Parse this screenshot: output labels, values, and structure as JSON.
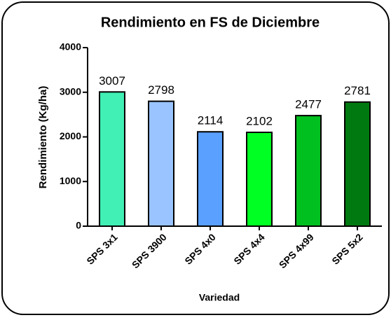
{
  "chart_data": {
    "type": "bar",
    "title": "Rendimiento en FS de Diciembre",
    "y_label": "Rendimiento (Kg/ha)",
    "x_label": "Variedad",
    "categories": [
      "SPS 3x1",
      "SPS 3900",
      "SPS 4x0",
      "SPS 4x4",
      "SPS 4x99",
      "SPS 5x2"
    ],
    "values": [
      3007,
      2798,
      2114,
      2102,
      2477,
      2781
    ],
    "colors": [
      "#40f0b4",
      "#99c4ff",
      "#5aa0ff",
      "#00ff22",
      "#00c020",
      "#007a10"
    ],
    "ylim": [
      0,
      4000
    ],
    "yticks": [
      0,
      1000,
      2000,
      3000,
      4000
    ]
  }
}
